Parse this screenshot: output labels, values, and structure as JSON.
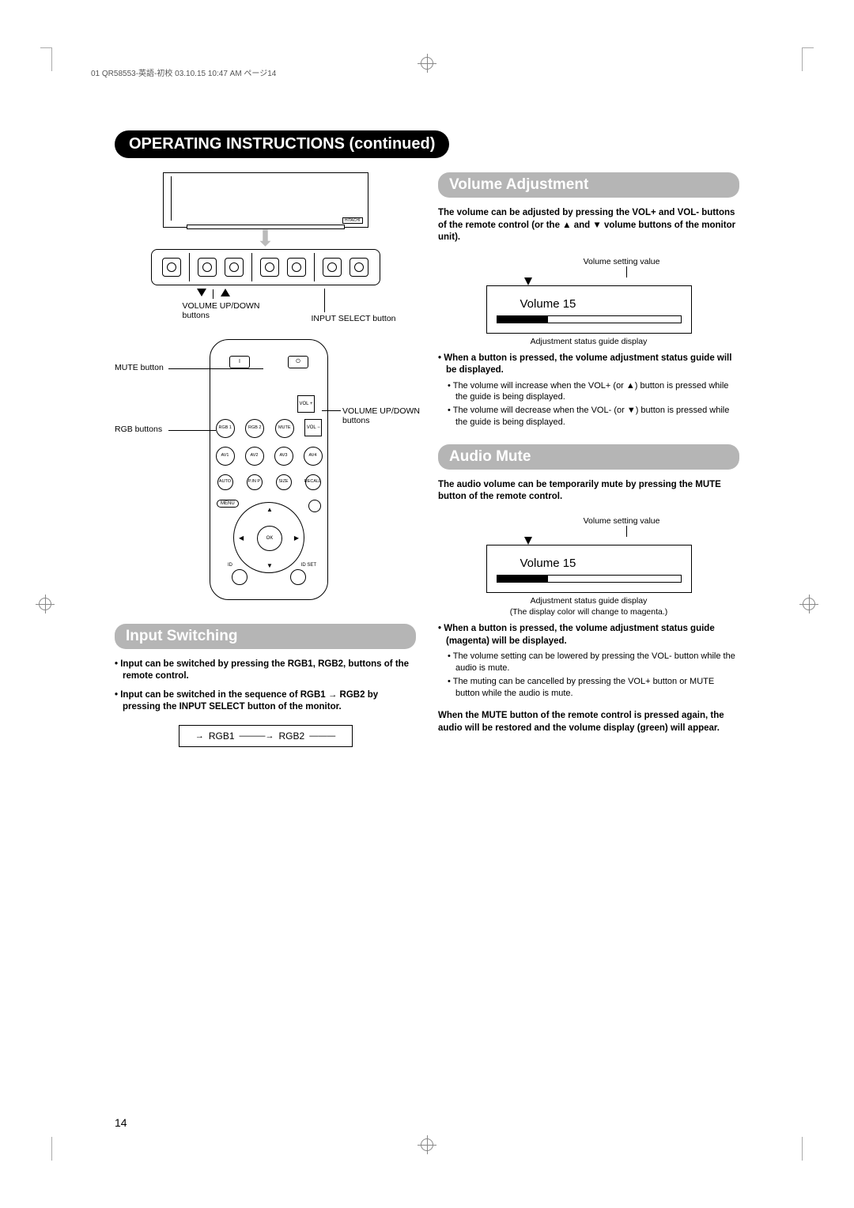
{
  "meta": {
    "header_line": "01 QR58553-英語-初校  03.10.15  10:47 AM  ページ14",
    "page_number": "14"
  },
  "page_title": "OPERATING INSTRUCTIONS (continued)",
  "monitor_diagram": {
    "brand_label": "HITACHI",
    "vol_buttons_label": "VOLUME UP/DOWN buttons",
    "input_select_label": "INPUT SELECT button"
  },
  "remote_diagram": {
    "mute_label": "MUTE button",
    "rgb_label": "RGB buttons",
    "vol_label": "VOLUME UP/DOWN buttons",
    "buttons": {
      "power_off": "I",
      "power_on": "⏻",
      "vol_plus": "VOL +",
      "vol_minus": "VOL −",
      "rgb1": "RGB 1",
      "rgb2": "RGB 2",
      "mute": "MUTE",
      "av1": "AV1",
      "av2": "AV2",
      "av3": "AV3",
      "av4": "AV4",
      "auto": "AUTO",
      "pinp": "P.IN P",
      "size": "SIZE",
      "recall": "RECALL",
      "menu": "MENU",
      "ok": "OK",
      "id": "ID",
      "id_set": "ID SET"
    }
  },
  "input_switching": {
    "header": "Input Switching",
    "para1": "Input can be switched by pressing the RGB1, RGB2, buttons of the remote control.",
    "para2": "Input can be switched in the sequence of RGB1 → RGB2 by pressing the INPUT SELECT button of the monitor.",
    "seq": {
      "a": "RGB1",
      "b": "RGB2"
    }
  },
  "volume_adjustment": {
    "header": "Volume Adjustment",
    "intro": "The volume can be adjusted by pressing the VOL+ and VOL- buttons of the remote control (or the ▲ and ▼ volume buttons of the monitor unit).",
    "display": {
      "setting_value_label": "Volume setting value",
      "volume_text": "Volume   15",
      "fill_percent": 28,
      "guide_label": "Adjustment status guide display"
    },
    "bullet1": "When a button is pressed, the volume adjustment status guide will be displayed.",
    "sub1": "The volume will increase when the VOL+ (or ▲) button is pressed while the guide is being displayed.",
    "sub2": "The volume will decrease when the VOL- (or ▼) button is pressed while the guide is being displayed."
  },
  "audio_mute": {
    "header": "Audio Mute",
    "intro": "The audio volume can be temporarily mute by pressing the MUTE button of the remote control.",
    "display": {
      "setting_value_label": "Volume setting value",
      "volume_text": "Volume   15",
      "fill_percent": 28,
      "guide_label1": "Adjustment status guide display",
      "guide_label2": "(The display color will change to magenta.)"
    },
    "bullet1": "When a button is pressed, the volume adjustment status guide (magenta) will be displayed.",
    "sub1": "The volume setting can be lowered by pressing the VOL- button while the audio is mute.",
    "sub2": "The muting can be cancelled by pressing the VOL+ button or MUTE button while the audio is mute.",
    "outro": "When the MUTE button of the remote control is pressed again, the audio will be restored and the volume display (green) will appear."
  },
  "style": {
    "section_header_bg": "#b5b5b5",
    "section_header_color": "#ffffff",
    "title_bg": "#000000",
    "title_color": "#ffffff"
  }
}
